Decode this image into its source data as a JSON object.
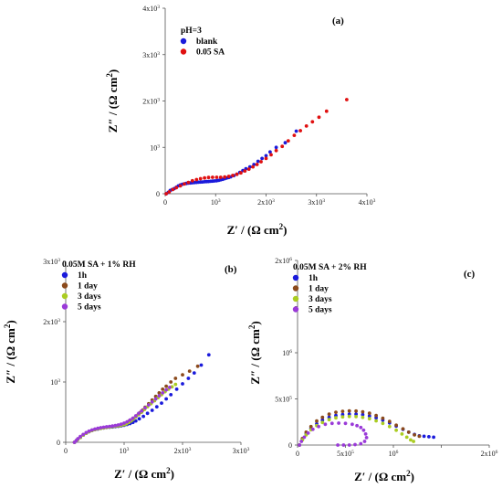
{
  "chart_data": [
    {
      "type": "scatter",
      "panel_label": "(a)",
      "legend_title": "pH=3",
      "xlabel_main": "Z′ / (Ω cm",
      "xlabel_sup": "2",
      "ylabel_main": "Z″ / (Ω cm",
      "ylabel_sup": "2",
      "xlim": [
        0,
        4000
      ],
      "ylim": [
        0,
        4000
      ],
      "xticks": [
        {
          "value": 0,
          "base": "0",
          "exp": ""
        },
        {
          "value": 1000,
          "base": "10",
          "exp": "3"
        },
        {
          "value": 2000,
          "base": "2x10",
          "exp": "3"
        },
        {
          "value": 3000,
          "base": "3x10",
          "exp": "3"
        },
        {
          "value": 4000,
          "base": "4x10",
          "exp": "3"
        }
      ],
      "yticks": [
        {
          "value": 0,
          "base": "0",
          "exp": ""
        },
        {
          "value": 1000,
          "base": "10",
          "exp": "3"
        },
        {
          "value": 2000,
          "base": "2x10",
          "exp": "3"
        },
        {
          "value": 3000,
          "base": "3x10",
          "exp": "3"
        },
        {
          "value": 4000,
          "base": "4x10",
          "exp": "3"
        }
      ],
      "series": [
        {
          "name": "blank",
          "color": "#1a1adb",
          "x": [
            20,
            60,
            100,
            140,
            180,
            220,
            260,
            300,
            340,
            380,
            420,
            460,
            500,
            540,
            580,
            620,
            660,
            700,
            740,
            780,
            820,
            860,
            900,
            940,
            980,
            1020,
            1060,
            1100,
            1140,
            1180,
            1220,
            1260,
            1300,
            1360,
            1420,
            1480,
            1540,
            1600,
            1680,
            1760,
            1840,
            1920,
            2000,
            2080,
            2200,
            2380,
            2600
          ],
          "y": [
            0,
            30,
            70,
            90,
            110,
            140,
            170,
            190,
            205,
            215,
            222,
            228,
            232,
            236,
            240,
            244,
            248,
            252,
            255,
            258,
            262,
            265,
            268,
            272,
            276,
            280,
            288,
            300,
            312,
            325,
            338,
            350,
            365,
            390,
            420,
            460,
            500,
            540,
            580,
            630,
            700,
            760,
            820,
            900,
            1000,
            1100,
            1350
          ]
        },
        {
          "name": "0.05 SA",
          "color": "#e01010",
          "x": [
            20,
            80,
            150,
            220,
            300,
            380,
            460,
            540,
            620,
            700,
            780,
            860,
            940,
            1020,
            1100,
            1180,
            1260,
            1340,
            1420,
            1500,
            1580,
            1660,
            1740,
            1820,
            1900,
            2000,
            2100,
            2200,
            2320,
            2440,
            2560,
            2680,
            2800,
            2920,
            3050,
            3200,
            3600
          ],
          "y": [
            0,
            40,
            90,
            130,
            170,
            210,
            245,
            280,
            305,
            325,
            340,
            350,
            355,
            355,
            355,
            360,
            375,
            395,
            420,
            450,
            490,
            530,
            580,
            630,
            690,
            760,
            840,
            930,
            1020,
            1140,
            1260,
            1360,
            1460,
            1550,
            1650,
            1780,
            2030
          ]
        }
      ]
    },
    {
      "type": "scatter",
      "panel_label": "(b)",
      "legend_title": "0.05M SA + 1% RH",
      "xlabel_main": "Z′ / (Ω cm",
      "xlabel_sup": "2",
      "ylabel_main": "Z″ / (Ω cm",
      "ylabel_sup": "2",
      "xlim": [
        0,
        3000
      ],
      "ylim": [
        0,
        3000
      ],
      "xticks": [
        {
          "value": 0,
          "base": "0",
          "exp": ""
        },
        {
          "value": 1000,
          "base": "10",
          "exp": "3"
        },
        {
          "value": 2000,
          "base": "2x10",
          "exp": "3"
        },
        {
          "value": 3000,
          "base": "3x10",
          "exp": "3"
        }
      ],
      "yticks": [
        {
          "value": 0,
          "base": "0",
          "exp": ""
        },
        {
          "value": 1000,
          "base": "10",
          "exp": "3"
        },
        {
          "value": 2000,
          "base": "2x10",
          "exp": "3"
        },
        {
          "value": 3000,
          "base": "3x10",
          "exp": "3"
        }
      ],
      "series": [
        {
          "name": "1h",
          "color": "#1a1adb",
          "x": [
            150,
            200,
            250,
            300,
            350,
            400,
            450,
            500,
            550,
            600,
            650,
            700,
            750,
            800,
            850,
            900,
            950,
            1000,
            1050,
            1100,
            1150,
            1200,
            1260,
            1330,
            1400,
            1480,
            1560,
            1640,
            1720,
            1800,
            1900,
            2000,
            2100,
            2200,
            2320,
            2450
          ],
          "y": [
            0,
            40,
            80,
            120,
            150,
            175,
            195,
            210,
            220,
            230,
            238,
            245,
            250,
            255,
            260,
            265,
            272,
            282,
            295,
            310,
            330,
            355,
            390,
            430,
            480,
            530,
            590,
            650,
            720,
            790,
            880,
            970,
            1060,
            1150,
            1280,
            1450
          ]
        },
        {
          "name": "1 day",
          "color": "#8b4a1c",
          "x": [
            150,
            200,
            250,
            300,
            350,
            400,
            450,
            500,
            550,
            600,
            650,
            700,
            750,
            800,
            850,
            900,
            950,
            1000,
            1040,
            1080,
            1120,
            1160,
            1200,
            1240,
            1280,
            1320,
            1360,
            1420,
            1480,
            1540,
            1600,
            1660,
            1720,
            1800,
            1880,
            2000,
            2120,
            2260
          ],
          "y": [
            0,
            45,
            85,
            125,
            155,
            180,
            200,
            215,
            225,
            235,
            243,
            250,
            256,
            262,
            268,
            275,
            285,
            300,
            320,
            345,
            370,
            400,
            430,
            460,
            495,
            535,
            580,
            640,
            700,
            760,
            820,
            880,
            930,
            1000,
            1060,
            1120,
            1180,
            1260
          ]
        },
        {
          "name": "3 days",
          "color": "#aacc22",
          "x": [
            150,
            200,
            250,
            300,
            350,
            400,
            450,
            500,
            550,
            600,
            650,
            700,
            750,
            800,
            850,
            900,
            950,
            1000,
            1040,
            1080,
            1120,
            1160,
            1200,
            1250,
            1300,
            1350,
            1400,
            1460,
            1520,
            1580,
            1640,
            1700,
            1760,
            1820,
            1880
          ],
          "y": [
            0,
            40,
            80,
            120,
            150,
            175,
            195,
            210,
            222,
            232,
            240,
            248,
            254,
            260,
            266,
            272,
            280,
            292,
            308,
            330,
            355,
            385,
            420,
            460,
            500,
            545,
            590,
            640,
            690,
            740,
            790,
            840,
            880,
            920,
            960
          ]
        },
        {
          "name": "5 days",
          "color": "#9a3ad8",
          "x": [
            150,
            180,
            210,
            250,
            300,
            350,
            400,
            450,
            500,
            550,
            600,
            650,
            700,
            750,
            800,
            850,
            900,
            950,
            1000,
            1050,
            1100,
            1150,
            1200,
            1250,
            1300,
            1360,
            1420,
            1480,
            1540,
            1600,
            1660,
            1720,
            1780
          ],
          "y": [
            0,
            30,
            60,
            95,
            130,
            160,
            185,
            205,
            220,
            232,
            242,
            250,
            258,
            264,
            270,
            278,
            288,
            300,
            318,
            340,
            368,
            400,
            440,
            480,
            520,
            570,
            620,
            670,
            720,
            770,
            820,
            870,
            910
          ]
        }
      ]
    },
    {
      "type": "scatter",
      "panel_label": "(c)",
      "legend_title": "0.05M SA + 2% RH",
      "xlabel_main": "Z′ / (Ω cm",
      "xlabel_sup": "2",
      "ylabel_main": "Z″ / (Ω cm",
      "ylabel_sup": "2",
      "xlim": [
        0,
        2000000
      ],
      "ylim": [
        0,
        2000000
      ],
      "xticks": [
        {
          "value": 0,
          "base": "0",
          "exp": ""
        },
        {
          "value": 500000,
          "base": "5x10",
          "exp": "5"
        },
        {
          "value": 1000000,
          "base": "10",
          "exp": "6"
        },
        {
          "value": 1500000,
          "base": "",
          "exp": ""
        },
        {
          "value": 2000000,
          "base": "2x10",
          "exp": "6"
        }
      ],
      "yticks": [
        {
          "value": 0,
          "base": "0",
          "exp": ""
        },
        {
          "value": 500000,
          "base": "5x10",
          "exp": "5"
        },
        {
          "value": 1000000,
          "base": "10",
          "exp": "6"
        },
        {
          "value": 1500000,
          "base": "",
          "exp": ""
        },
        {
          "value": 2000000,
          "base": "2x10",
          "exp": "6"
        }
      ],
      "series": [
        {
          "name": "1h",
          "color": "#1a1adb",
          "x": [
            20000,
            50000,
            90000,
            140000,
            200000,
            260000,
            330000,
            400000,
            470000,
            540000,
            610000,
            680000,
            750000,
            820000,
            890000,
            960000,
            1030000,
            1100000,
            1160000,
            1220000,
            1270000,
            1320000,
            1370000,
            1420000
          ],
          "y": [
            0,
            60000,
            120000,
            180000,
            230000,
            270000,
            300000,
            320000,
            330000,
            335000,
            335000,
            330000,
            315000,
            295000,
            270000,
            240000,
            205000,
            170000,
            140000,
            115000,
            100000,
            95000,
            90000,
            85000
          ]
        },
        {
          "name": "1 day",
          "color": "#8b4a1c",
          "x": [
            20000,
            50000,
            90000,
            140000,
            200000,
            260000,
            330000,
            400000,
            470000,
            540000,
            610000,
            680000,
            750000,
            820000,
            890000,
            960000,
            1030000,
            1100000,
            1160000,
            1220000,
            1270000
          ],
          "y": [
            0,
            70000,
            140000,
            200000,
            260000,
            300000,
            335000,
            355000,
            365000,
            370000,
            368000,
            360000,
            345000,
            320000,
            290000,
            255000,
            215000,
            175000,
            140000,
            110000,
            95000
          ]
        },
        {
          "name": "3 days",
          "color": "#aacc22",
          "x": [
            20000,
            50000,
            90000,
            140000,
            200000,
            260000,
            330000,
            400000,
            470000,
            540000,
            610000,
            680000,
            750000,
            820000,
            890000,
            960000,
            1030000,
            1090000,
            1140000,
            1180000,
            1210000
          ],
          "y": [
            0,
            55000,
            110000,
            165000,
            210000,
            245000,
            275000,
            295000,
            305000,
            310000,
            308000,
            300000,
            285000,
            262000,
            235000,
            200000,
            160000,
            120000,
            85000,
            55000,
            40000
          ]
        },
        {
          "name": "5 days",
          "color": "#9a3ad8",
          "x": [
            20000,
            40000,
            70000,
            110000,
            160000,
            220000,
            290000,
            360000,
            430000,
            500000,
            570000,
            620000,
            660000,
            690000,
            710000,
            720000,
            700000,
            660000,
            600000,
            540000,
            480000,
            420000
          ],
          "y": [
            0,
            40000,
            85000,
            130000,
            170000,
            200000,
            225000,
            235000,
            238000,
            235000,
            225000,
            210000,
            190000,
            160000,
            120000,
            80000,
            40000,
            15000,
            5000,
            0,
            0,
            0
          ]
        }
      ]
    }
  ]
}
